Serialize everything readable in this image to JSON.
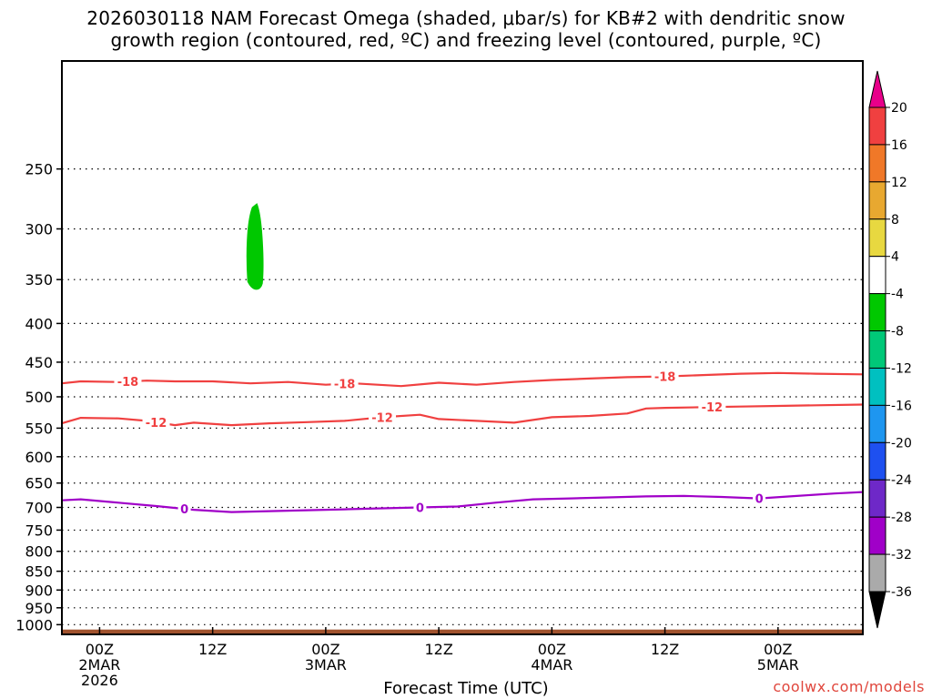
{
  "title": {
    "line1": "2026030118 NAM Forecast Omega (shaded, μbar/s) for KB#2 with dendritic snow",
    "line2": "growth region (contoured, red, ºC) and freezing level (contoured, purple, ºC)"
  },
  "credit": "coolwx.com/models",
  "chart_data": {
    "type": "time-height cross section",
    "xlabel": "Forecast Time (UTC)",
    "ylabel": "",
    "x_range_hours": [
      -4,
      81
    ],
    "y_range_hPa": [
      1030,
      180
    ],
    "y_scale": "log-pressure",
    "grid": true,
    "y_ticks": [
      250,
      300,
      350,
      400,
      450,
      500,
      550,
      600,
      650,
      700,
      750,
      800,
      850,
      900,
      950,
      1000
    ],
    "x_ticks": [
      {
        "hour": 0,
        "lines": [
          "00Z",
          "2MAR",
          "2026"
        ]
      },
      {
        "hour": 12,
        "lines": [
          "12Z"
        ]
      },
      {
        "hour": 24,
        "lines": [
          "00Z",
          "3MAR"
        ]
      },
      {
        "hour": 36,
        "lines": [
          "12Z"
        ]
      },
      {
        "hour": 48,
        "lines": [
          "00Z",
          "4MAR"
        ]
      },
      {
        "hour": 60,
        "lines": [
          "12Z"
        ]
      },
      {
        "hour": 72,
        "lines": [
          "00Z",
          "5MAR"
        ]
      }
    ],
    "colorbar": {
      "labels": [
        "20",
        "16",
        "12",
        "8",
        "4",
        "-4",
        "-8",
        "-12",
        "-16",
        "-20",
        "-24",
        "-28",
        "-32",
        "-36"
      ],
      "colors": [
        "#e8008a",
        "#f04040",
        "#f07828",
        "#e8a830",
        "#e8d840",
        "#ffffff",
        "#00c800",
        "#00c878",
        "#00c0c0",
        "#1e96f0",
        "#1e50f0",
        "#6e28c8",
        "#a000c8",
        "#aaaaaa",
        "#000000"
      ]
    },
    "omega_shaded": [
      {
        "value_range": "-8 to -4",
        "color": "#00c800",
        "hour_center": 16.5,
        "pressure_top_hPa": 278,
        "pressure_bottom_hPa": 362
      }
    ],
    "series": [
      {
        "name": "-18",
        "color": "#f04040",
        "label_hours": [
          3,
          26,
          60
        ],
        "points": [
          [
            -4,
            480
          ],
          [
            -2,
            477
          ],
          [
            2,
            478
          ],
          [
            5,
            476
          ],
          [
            8,
            477
          ],
          [
            12,
            477
          ],
          [
            16,
            480
          ],
          [
            20,
            478
          ],
          [
            24,
            482
          ],
          [
            27,
            480
          ],
          [
            32,
            484
          ],
          [
            36,
            479
          ],
          [
            40,
            482
          ],
          [
            44,
            478
          ],
          [
            48,
            475
          ],
          [
            52,
            473
          ],
          [
            56,
            471
          ],
          [
            60,
            470
          ],
          [
            64,
            468
          ],
          [
            68,
            466
          ],
          [
            72,
            465
          ],
          [
            76,
            466
          ],
          [
            81,
            467
          ]
        ]
      },
      {
        "name": "-12",
        "color": "#f04040",
        "label_hours": [
          6,
          30,
          65
        ],
        "points": [
          [
            -4,
            542
          ],
          [
            -2,
            533
          ],
          [
            2,
            534
          ],
          [
            5,
            538
          ],
          [
            8,
            545
          ],
          [
            10,
            541
          ],
          [
            14,
            545
          ],
          [
            18,
            542
          ],
          [
            22,
            540
          ],
          [
            26,
            538
          ],
          [
            30,
            532
          ],
          [
            34,
            528
          ],
          [
            36,
            535
          ],
          [
            40,
            538
          ],
          [
            44,
            541
          ],
          [
            48,
            532
          ],
          [
            52,
            530
          ],
          [
            56,
            526
          ],
          [
            58,
            518
          ],
          [
            60,
            517
          ],
          [
            64,
            516
          ],
          [
            68,
            515
          ],
          [
            72,
            514
          ],
          [
            76,
            513
          ],
          [
            81,
            512
          ]
        ]
      },
      {
        "name": "0",
        "color": "#a000c8",
        "label_hours": [
          9,
          34,
          70
        ],
        "points": [
          [
            -4,
            685
          ],
          [
            -2,
            683
          ],
          [
            2,
            690
          ],
          [
            6,
            697
          ],
          [
            10,
            705
          ],
          [
            14,
            710
          ],
          [
            18,
            708
          ],
          [
            22,
            706
          ],
          [
            26,
            704
          ],
          [
            30,
            702
          ],
          [
            34,
            700
          ],
          [
            38,
            698
          ],
          [
            42,
            690
          ],
          [
            46,
            683
          ],
          [
            50,
            681
          ],
          [
            54,
            679
          ],
          [
            58,
            677
          ],
          [
            62,
            676
          ],
          [
            66,
            678
          ],
          [
            70,
            681
          ],
          [
            74,
            676
          ],
          [
            78,
            671
          ],
          [
            81,
            668
          ]
        ]
      }
    ],
    "terrain": {
      "color": "#a0522d",
      "pressure_hPa": 1015
    }
  }
}
